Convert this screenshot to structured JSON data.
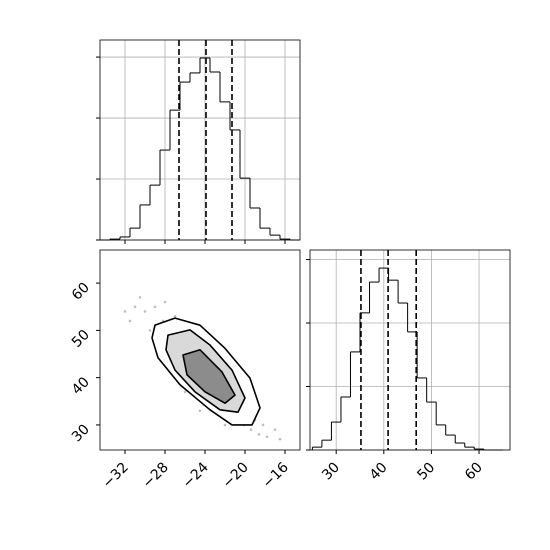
{
  "chart_data": [
    {
      "type": "histogram",
      "bins": [
        -34.5,
        -33.5,
        -32.5,
        -31.5,
        -30.5,
        -29.5,
        -28.5,
        -27.5,
        -26.5,
        -25.5,
        -24.5,
        -23.5,
        -22.5,
        -21.5,
        -20.5,
        -19.5,
        -18.5,
        -17.5,
        -16.5,
        -15.5,
        -14.5
      ],
      "values": [
        0,
        3,
        10,
        39,
        115,
        180,
        295,
        426,
        518,
        548,
        597,
        551,
        453,
        361,
        203,
        105,
        39,
        16,
        3,
        0
      ],
      "quantiles": [
        -26.6,
        -23.9,
        -21.3
      ],
      "xlim": [
        -34.5,
        -14.5
      ],
      "ylim": [
        0,
        656
      ],
      "xticks": [
        -32,
        -28,
        -24,
        -20,
        -16
      ],
      "yticks": [
        0,
        200,
        400,
        600
      ],
      "grid": true,
      "color": "#000000"
    },
    {
      "type": "scatter",
      "x": [
        -30,
        -29.5,
        -29,
        -28.6,
        -28.2,
        -27.9,
        -27.5,
        -27.1,
        -26.8,
        -26.4,
        -26,
        -25.7,
        -25.3,
        -25,
        -24.6,
        -24.3,
        -24,
        -23.7,
        -23.3,
        -23,
        -22.6,
        -22.3,
        -21.9,
        -21.6,
        -21.2,
        -20.9,
        -20.5,
        -20.1,
        -19.8,
        -19.4,
        -19,
        -18.6,
        -18.2,
        -17.8,
        -31,
        -30.5,
        -32,
        -31.5,
        -17,
        -16.5,
        -27,
        -25,
        -23,
        -21,
        -26,
        -22,
        -28,
        -20,
        -24,
        -24.5
      ],
      "y": [
        54,
        50,
        55,
        47,
        52,
        44,
        50,
        45,
        49,
        41,
        47,
        42,
        45,
        38,
        44,
        39,
        42,
        36,
        41,
        35,
        40,
        33,
        38,
        32,
        36,
        31,
        35,
        30,
        33,
        29,
        31,
        28,
        30,
        27.5,
        55,
        57,
        54,
        52,
        29,
        27,
        53,
        48,
        44,
        40,
        37,
        30,
        56,
        37,
        50,
        33
      ],
      "contours": [
        {
          "x": [
            -29.0,
            -27.0,
            -24.5,
            -22.0,
            -19.5,
            -18.5,
            -19.3,
            -21.3,
            -23.5,
            -26.5,
            -28.7,
            -29.3
          ],
          "y": [
            51.1,
            52.6,
            51.1,
            46.2,
            39.9,
            33.6,
            30.0,
            30.0,
            33.2,
            38.5,
            44.2,
            48.4
          ]
        },
        {
          "x": [
            -27.7,
            -25.5,
            -23.5,
            -21.3,
            -20.0,
            -20.7,
            -22.5,
            -25.0,
            -27.0,
            -27.9
          ],
          "y": [
            49.0,
            50.1,
            46.9,
            41.6,
            35.7,
            32.7,
            33.2,
            37.0,
            41.6,
            45.9
          ]
        },
        {
          "x": [
            -26.2,
            -24.5,
            -22.3,
            -21.0,
            -22.0,
            -24.0,
            -25.8
          ],
          "y": [
            44.8,
            45.9,
            41.2,
            36.3,
            34.6,
            37.0,
            40.6
          ]
        }
      ],
      "xlim": [
        -34.5,
        -14.5
      ],
      "ylim": [
        24.7,
        67.0
      ],
      "xticks": [
        {
          "value": -32,
          "label": "−32"
        },
        {
          "value": -28,
          "label": "−28"
        },
        {
          "value": -24,
          "label": "−24"
        },
        {
          "value": -20,
          "label": "−20"
        },
        {
          "value": -16,
          "label": "−16"
        }
      ],
      "yticks": [
        30,
        40,
        50,
        60
      ],
      "grid": false,
      "color": "#808080"
    },
    {
      "type": "histogram",
      "bins": [
        25,
        27,
        29,
        31,
        33,
        35,
        37,
        39,
        41,
        43,
        45,
        47,
        49,
        51,
        53,
        55,
        57,
        59,
        61,
        63,
        65
      ],
      "values": [
        9,
        31,
        88,
        167,
        309,
        432,
        529,
        573,
        535,
        463,
        372,
        227,
        151,
        79,
        47,
        22,
        9,
        3,
        0,
        0
      ],
      "quantiles": [
        35.2,
        40.9,
        46.8
      ],
      "xlim": [
        24.5,
        66.5
      ],
      "ylim": [
        0,
        630
      ],
      "xticks": [
        30,
        40,
        50,
        60
      ],
      "yticks": [
        0,
        200,
        400,
        600
      ],
      "grid": true,
      "color": "#000000"
    }
  ]
}
